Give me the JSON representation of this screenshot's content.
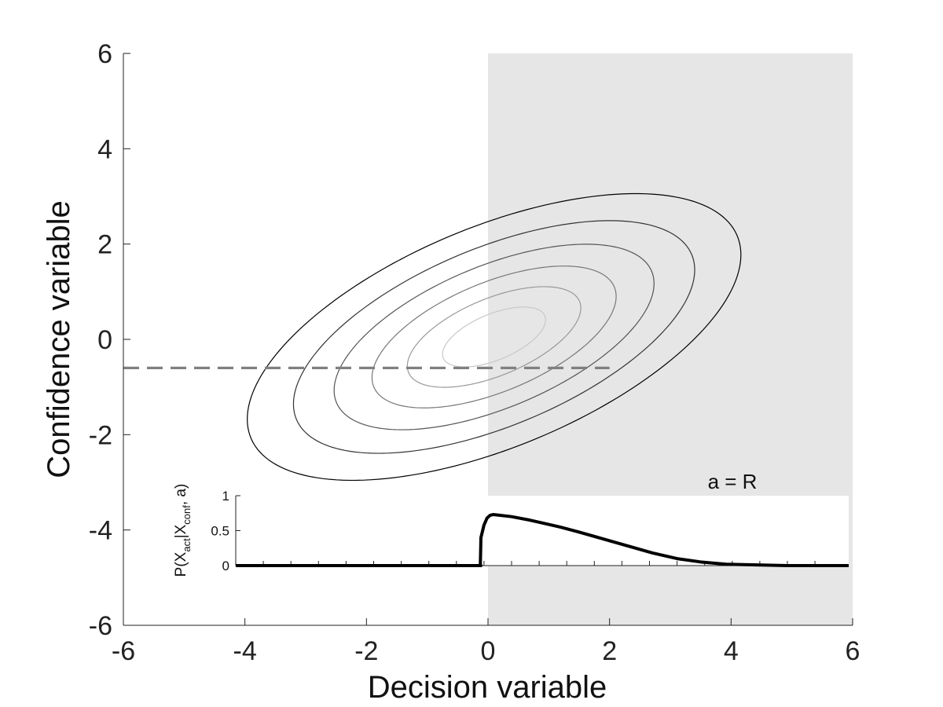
{
  "chart_data": [
    {
      "type": "line",
      "title": "",
      "xlabel": "Decision variable",
      "ylabel": "Confidence variable",
      "xlim": [
        -6,
        6
      ],
      "ylim": [
        -6,
        6
      ],
      "x_ticks": [
        -6,
        -4,
        -2,
        0,
        2,
        4,
        6
      ],
      "y_ticks": [
        -6,
        -4,
        -2,
        0,
        2,
        4,
        6
      ],
      "grid": false,
      "shaded_region": {
        "x_range": [
          0,
          6
        ],
        "y_range": [
          -6,
          6
        ],
        "color": "#e6e6e6"
      },
      "dashed_line": {
        "y": -0.6,
        "x_range": [
          -6,
          2
        ],
        "color": "#808080"
      },
      "contours": {
        "center": [
          0.1,
          0.05
        ],
        "angle_deg": 31,
        "ellipses": [
          {
            "major": 4.55,
            "minor": 2.2,
            "color": "#000000"
          },
          {
            "major": 3.7,
            "minor": 1.78,
            "color": "#333333"
          },
          {
            "major": 2.95,
            "minor": 1.42,
            "color": "#555555"
          },
          {
            "major": 2.25,
            "minor": 1.09,
            "color": "#777777"
          },
          {
            "major": 1.6,
            "minor": 0.77,
            "color": "#999999"
          },
          {
            "major": 0.95,
            "minor": 0.46,
            "color": "#c8c8c8"
          }
        ]
      }
    },
    {
      "type": "line",
      "annotation": "a = R",
      "ylabel": "P(X_act|X_conf, a)",
      "ylabel_parts": [
        "P(X",
        "act",
        "|X",
        "conf",
        ", a)"
      ],
      "xlim": [
        -4,
        6
      ],
      "ylim": [
        0,
        1
      ],
      "y_ticks": [
        "0",
        "0.5",
        "1"
      ],
      "x_minor_ticks": [
        -3.55,
        -3.1,
        -2.65,
        -2.2,
        -1.75,
        -1.3,
        -0.85,
        -0.4,
        0.05,
        0.5,
        0.95,
        1.4,
        1.85,
        2.3,
        2.75,
        3.2,
        3.65,
        4.1,
        4.55,
        5.0,
        5.45
      ],
      "series": [
        {
          "color": "#000000",
          "x": [
            -4.0,
            -2.0,
            0.0,
            -0.01,
            0.0,
            0.05,
            0.1,
            0.15,
            0.2,
            0.3,
            0.5,
            0.8,
            1.0,
            1.3,
            1.6,
            2.0,
            2.4,
            2.8,
            3.2,
            3.6,
            4.0,
            4.5,
            5.0,
            5.5,
            6.0
          ],
          "y": [
            0.0,
            0.0,
            0.0,
            0.0,
            0.4,
            0.58,
            0.68,
            0.72,
            0.73,
            0.72,
            0.7,
            0.65,
            0.61,
            0.55,
            0.48,
            0.38,
            0.28,
            0.18,
            0.1,
            0.05,
            0.02,
            0.01,
            0.0,
            0.0,
            0.0
          ]
        }
      ]
    }
  ]
}
